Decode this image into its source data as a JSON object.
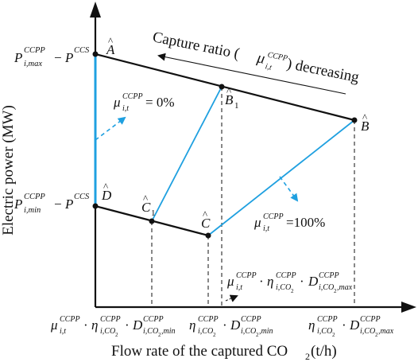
{
  "axes": {
    "y_label": "Electric power (MW)",
    "x_label_text": "Flow rate of the captured CO",
    "x_label_sub": "2",
    "x_label_unit": " (t/h)"
  },
  "points": {
    "A": "A",
    "B": "B",
    "B1": "B",
    "B1_sub": "1",
    "C": "C",
    "C1": "C",
    "C1_sub": "1",
    "D": "D",
    "hat": "^"
  },
  "y_ticks": {
    "top": {
      "P": "P",
      "sub": "i,max",
      "sup": "CCPP",
      "minus": "−",
      "P2": "P",
      "sup2": "CCS"
    },
    "bottom": {
      "P": "P",
      "sub": "i,min",
      "sup": "CCPP",
      "minus": "−",
      "P2": "P",
      "sup2": "CCS"
    }
  },
  "annotations": {
    "capture_ratio": "Capture ratio (",
    "capture_mu": "μ",
    "capture_mu_sup": "CCPP",
    "capture_mu_sub": "i,t",
    "capture_decreasing": ") decreasing",
    "mu0_mu": "μ",
    "mu0_sup": "CCPP",
    "mu0_sub": "i,t",
    "mu0_value": " = 0%",
    "mu100_mu": "μ",
    "mu100_sup": "CCPP",
    "mu100_sub": "i,t",
    "mu100_value": " =100%",
    "expr_mu": "μ",
    "expr_mu_sup": "CCPP",
    "expr_mu_sub": "i,t",
    "expr_dot": "·",
    "expr_eta": "η",
    "expr_eta_sup": "CCPP",
    "expr_eta_sub": "i,CO",
    "expr_eta_sub2": "2",
    "expr_D": "D",
    "expr_D_sup": "CCPP",
    "expr_D_sub": "i,CO",
    "expr_D_sub2": "2",
    "expr_D_sub3": ",max"
  },
  "x_ticks": {
    "left": {
      "mu": "μ",
      "mu_sup": "CCPP",
      "mu_sub": "i,t",
      "dot": "·",
      "eta": "η",
      "eta_sup": "CCPP",
      "eta_sub": "i,CO",
      "eta_sub2": "2",
      "D": "D",
      "D_sup": "CCPP",
      "D_sub": "i,CO",
      "D_sub2": "2",
      "D_sub3": ",min"
    },
    "middle": {
      "eta": "η",
      "eta_sup": "CCPP",
      "eta_sub": "i,CO",
      "eta_sub2": "2",
      "dot": "·",
      "D": "D",
      "D_sup": "CCPP",
      "D_sub": "i,CO",
      "D_sub2": "2",
      "D_sub3": ",min"
    },
    "right": {
      "eta": "η",
      "eta_sup": "CCPP",
      "eta_sub": "i,CO",
      "eta_sub2": "2",
      "dot": "·",
      "D": "D",
      "D_sup": "CCPP",
      "D_sub": "i,CO",
      "D_sub2": "2",
      "D_sub3": ",max"
    }
  },
  "colors": {
    "blue": "#1fa0e0",
    "black": "#111111"
  }
}
